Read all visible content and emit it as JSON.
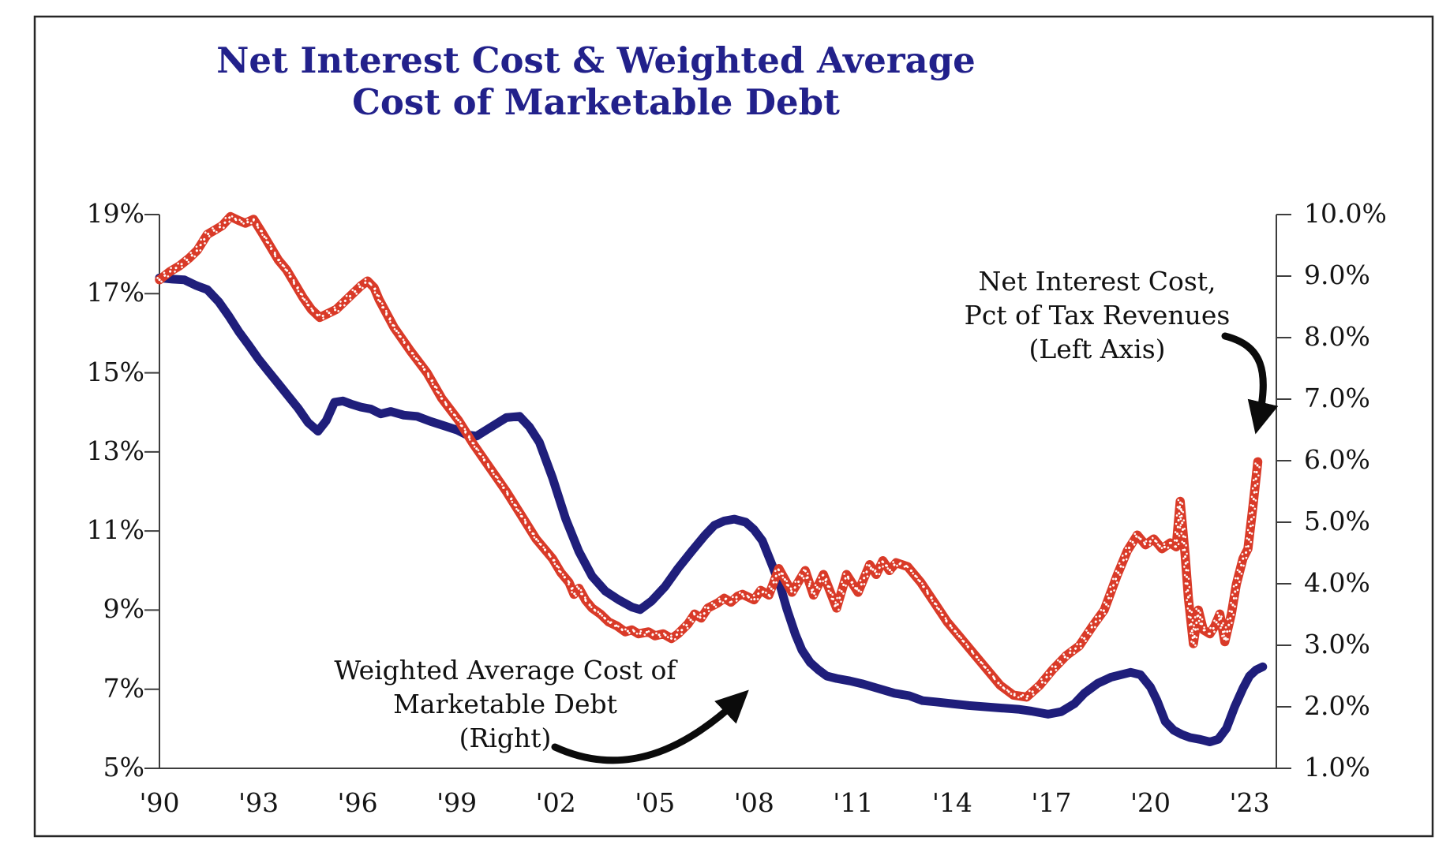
{
  "title": {
    "line1": "Net Interest Cost & Weighted Average",
    "line2": "Cost of Marketable Debt",
    "color": "#22218B"
  },
  "annotations": {
    "net_interest": {
      "line1": "Net Interest Cost,",
      "line2": "Pct of Tax Revenues",
      "line3": "(Left Axis)"
    },
    "weighted_avg": {
      "line1": "Weighted Average Cost of",
      "line2": "Marketable Debt",
      "line3": "(Right)"
    }
  },
  "colors": {
    "title_navy": "#22218B",
    "red_series": "#D93A28",
    "blue_series": "#1F1E7B",
    "axis": "#3d3d3d",
    "text": "#141414",
    "border": "#262626",
    "dot_texture": "#ffffff"
  },
  "chart_data": {
    "type": "line",
    "title": "Net Interest Cost & Weighted Average Cost of Marketable Debt",
    "grid": false,
    "legend_position": "annotated-arrows",
    "x_axis": {
      "tick_years": [
        1990,
        1993,
        1996,
        1999,
        2002,
        2005,
        2008,
        2011,
        2014,
        2017,
        2020,
        2023
      ],
      "tick_labels": [
        "'90",
        "'93",
        "'96",
        "'99",
        "'02",
        "'05",
        "'08",
        "'11",
        "'14",
        "'17",
        "'20",
        "'23"
      ],
      "range": [
        1990,
        2024.3
      ]
    },
    "left_axis": {
      "ticks": [
        19,
        17,
        15,
        13,
        11,
        9,
        7,
        5
      ],
      "tick_labels": [
        "19%",
        "17%",
        "15%",
        "13%",
        "11%",
        "9%",
        "7%",
        "5%"
      ],
      "range": [
        5,
        19
      ],
      "series": "Net Interest Cost, Pct of Tax Revenues"
    },
    "right_axis": {
      "ticks": [
        10,
        9,
        8,
        7,
        6,
        5,
        4,
        3,
        2,
        1
      ],
      "tick_labels": [
        "10.0%",
        "9.0%",
        "8.0%",
        "7.0%",
        "6.0%",
        "5.0%",
        "4.0%",
        "3.0%",
        "2.0%",
        "1.0%"
      ],
      "range": [
        1,
        10
      ],
      "series": "Weighted Average Cost of Marketable Debt"
    },
    "series": [
      {
        "name": "Weighted Average Cost of Marketable Debt",
        "axis": "right",
        "style": "solid",
        "color": "#1F1E7B",
        "points": [
          [
            1990.0,
            8.97
          ],
          [
            1990.4,
            8.95
          ],
          [
            1990.75,
            8.94
          ],
          [
            1991.1,
            8.85
          ],
          [
            1991.45,
            8.78
          ],
          [
            1991.8,
            8.58
          ],
          [
            1992.1,
            8.35
          ],
          [
            1992.4,
            8.1
          ],
          [
            1992.7,
            7.88
          ],
          [
            1993.0,
            7.65
          ],
          [
            1993.3,
            7.45
          ],
          [
            1993.6,
            7.25
          ],
          [
            1993.9,
            7.05
          ],
          [
            1994.2,
            6.85
          ],
          [
            1994.5,
            6.62
          ],
          [
            1994.8,
            6.48
          ],
          [
            1995.05,
            6.65
          ],
          [
            1995.3,
            6.95
          ],
          [
            1995.55,
            6.97
          ],
          [
            1995.8,
            6.92
          ],
          [
            1996.1,
            6.87
          ],
          [
            1996.4,
            6.84
          ],
          [
            1996.7,
            6.76
          ],
          [
            1997.0,
            6.8
          ],
          [
            1997.4,
            6.74
          ],
          [
            1997.8,
            6.72
          ],
          [
            1998.2,
            6.64
          ],
          [
            1998.6,
            6.57
          ],
          [
            1999.0,
            6.5
          ],
          [
            1999.3,
            6.42
          ],
          [
            1999.6,
            6.4
          ],
          [
            1999.9,
            6.5
          ],
          [
            2000.2,
            6.6
          ],
          [
            2000.5,
            6.7
          ],
          [
            2000.9,
            6.72
          ],
          [
            2001.2,
            6.55
          ],
          [
            2001.5,
            6.3
          ],
          [
            2001.9,
            5.72
          ],
          [
            2002.3,
            5.05
          ],
          [
            2002.7,
            4.52
          ],
          [
            2003.1,
            4.12
          ],
          [
            2003.5,
            3.88
          ],
          [
            2003.9,
            3.74
          ],
          [
            2004.3,
            3.62
          ],
          [
            2004.55,
            3.58
          ],
          [
            2004.9,
            3.72
          ],
          [
            2005.3,
            3.95
          ],
          [
            2005.7,
            4.25
          ],
          [
            2006.1,
            4.52
          ],
          [
            2006.5,
            4.78
          ],
          [
            2006.8,
            4.95
          ],
          [
            2007.1,
            5.02
          ],
          [
            2007.4,
            5.05
          ],
          [
            2007.75,
            5.0
          ],
          [
            2008.0,
            4.88
          ],
          [
            2008.25,
            4.7
          ],
          [
            2008.55,
            4.3
          ],
          [
            2008.8,
            3.95
          ],
          [
            2009.0,
            3.58
          ],
          [
            2009.25,
            3.18
          ],
          [
            2009.45,
            2.92
          ],
          [
            2009.7,
            2.72
          ],
          [
            2009.95,
            2.6
          ],
          [
            2010.2,
            2.5
          ],
          [
            2010.5,
            2.46
          ],
          [
            2010.9,
            2.42
          ],
          [
            2011.3,
            2.37
          ],
          [
            2011.75,
            2.3
          ],
          [
            2012.25,
            2.22
          ],
          [
            2012.7,
            2.18
          ],
          [
            2013.1,
            2.1
          ],
          [
            2013.5,
            2.08
          ],
          [
            2014.0,
            2.05
          ],
          [
            2014.5,
            2.02
          ],
          [
            2015.0,
            2.0
          ],
          [
            2015.5,
            1.98
          ],
          [
            2016.0,
            1.96
          ],
          [
            2016.4,
            1.93
          ],
          [
            2016.9,
            1.88
          ],
          [
            2017.3,
            1.92
          ],
          [
            2017.7,
            2.05
          ],
          [
            2018.0,
            2.22
          ],
          [
            2018.4,
            2.38
          ],
          [
            2018.8,
            2.48
          ],
          [
            2019.1,
            2.52
          ],
          [
            2019.4,
            2.56
          ],
          [
            2019.7,
            2.52
          ],
          [
            2020.0,
            2.32
          ],
          [
            2020.2,
            2.1
          ],
          [
            2020.45,
            1.76
          ],
          [
            2020.7,
            1.62
          ],
          [
            2020.95,
            1.55
          ],
          [
            2021.2,
            1.5
          ],
          [
            2021.5,
            1.47
          ],
          [
            2021.8,
            1.43
          ],
          [
            2022.05,
            1.47
          ],
          [
            2022.3,
            1.65
          ],
          [
            2022.55,
            2.0
          ],
          [
            2022.8,
            2.3
          ],
          [
            2023.0,
            2.5
          ],
          [
            2023.2,
            2.6
          ],
          [
            2023.4,
            2.65
          ]
        ]
      },
      {
        "name": "Net Interest Cost, Pct of Tax Revenues",
        "axis": "left",
        "style": "dotted-ribbon",
        "color": "#D93A28",
        "points": [
          [
            1990.0,
            17.35
          ],
          [
            1990.3,
            17.55
          ],
          [
            1990.6,
            17.7
          ],
          [
            1990.9,
            17.9
          ],
          [
            1991.15,
            18.1
          ],
          [
            1991.45,
            18.5
          ],
          [
            1991.7,
            18.62
          ],
          [
            1991.9,
            18.72
          ],
          [
            1992.15,
            18.95
          ],
          [
            1992.4,
            18.85
          ],
          [
            1992.6,
            18.78
          ],
          [
            1992.85,
            18.88
          ],
          [
            1993.1,
            18.55
          ],
          [
            1993.35,
            18.2
          ],
          [
            1993.6,
            17.85
          ],
          [
            1993.85,
            17.6
          ],
          [
            1994.1,
            17.25
          ],
          [
            1994.35,
            16.9
          ],
          [
            1994.6,
            16.6
          ],
          [
            1994.85,
            16.4
          ],
          [
            1995.1,
            16.5
          ],
          [
            1995.35,
            16.6
          ],
          [
            1995.6,
            16.8
          ],
          [
            1995.85,
            17.0
          ],
          [
            1996.1,
            17.2
          ],
          [
            1996.3,
            17.32
          ],
          [
            1996.5,
            17.15
          ],
          [
            1996.65,
            16.85
          ],
          [
            1997.1,
            16.15
          ],
          [
            1997.6,
            15.55
          ],
          [
            1998.1,
            15.0
          ],
          [
            1998.55,
            14.35
          ],
          [
            1999.05,
            13.8
          ],
          [
            1999.5,
            13.2
          ],
          [
            2000.0,
            12.6
          ],
          [
            2000.5,
            12.0
          ],
          [
            2000.95,
            11.4
          ],
          [
            2001.4,
            10.8
          ],
          [
            2001.9,
            10.3
          ],
          [
            2002.15,
            9.95
          ],
          [
            2002.4,
            9.7
          ],
          [
            2002.55,
            9.4
          ],
          [
            2002.7,
            9.55
          ],
          [
            2002.9,
            9.25
          ],
          [
            2003.1,
            9.05
          ],
          [
            2003.35,
            8.9
          ],
          [
            2003.6,
            8.7
          ],
          [
            2003.85,
            8.6
          ],
          [
            2004.1,
            8.45
          ],
          [
            2004.3,
            8.5
          ],
          [
            2004.5,
            8.4
          ],
          [
            2004.8,
            8.45
          ],
          [
            2005.0,
            8.35
          ],
          [
            2005.25,
            8.4
          ],
          [
            2005.5,
            8.28
          ],
          [
            2005.7,
            8.4
          ],
          [
            2006.0,
            8.65
          ],
          [
            2006.2,
            8.9
          ],
          [
            2006.4,
            8.8
          ],
          [
            2006.6,
            9.05
          ],
          [
            2006.9,
            9.18
          ],
          [
            2007.1,
            9.3
          ],
          [
            2007.3,
            9.2
          ],
          [
            2007.5,
            9.35
          ],
          [
            2007.65,
            9.4
          ],
          [
            2008.0,
            9.26
          ],
          [
            2008.2,
            9.5
          ],
          [
            2008.45,
            9.38
          ],
          [
            2008.75,
            10.05
          ],
          [
            2009.15,
            9.45
          ],
          [
            2009.55,
            10.0
          ],
          [
            2009.8,
            9.38
          ],
          [
            2010.1,
            9.9
          ],
          [
            2010.5,
            9.05
          ],
          [
            2010.8,
            9.9
          ],
          [
            2011.15,
            9.45
          ],
          [
            2011.5,
            10.15
          ],
          [
            2011.7,
            9.9
          ],
          [
            2011.9,
            10.25
          ],
          [
            2012.1,
            10.0
          ],
          [
            2012.3,
            10.2
          ],
          [
            2012.65,
            10.1
          ],
          [
            2013.05,
            9.7
          ],
          [
            2013.45,
            9.2
          ],
          [
            2013.85,
            8.7
          ],
          [
            2014.25,
            8.3
          ],
          [
            2014.65,
            7.9
          ],
          [
            2015.05,
            7.5
          ],
          [
            2015.45,
            7.1
          ],
          [
            2015.85,
            6.85
          ],
          [
            2016.25,
            6.8
          ],
          [
            2016.65,
            7.1
          ],
          [
            2017.05,
            7.5
          ],
          [
            2017.45,
            7.85
          ],
          [
            2017.85,
            8.1
          ],
          [
            2018.25,
            8.6
          ],
          [
            2018.6,
            9.0
          ],
          [
            2019.0,
            9.9
          ],
          [
            2019.3,
            10.5
          ],
          [
            2019.6,
            10.9
          ],
          [
            2019.85,
            10.65
          ],
          [
            2020.1,
            10.8
          ],
          [
            2020.35,
            10.55
          ],
          [
            2020.6,
            10.7
          ],
          [
            2020.78,
            10.6
          ],
          [
            2020.9,
            11.75
          ],
          [
            2021.05,
            10.4
          ],
          [
            2021.15,
            9.3
          ],
          [
            2021.3,
            8.15
          ],
          [
            2021.45,
            9.0
          ],
          [
            2021.6,
            8.5
          ],
          [
            2021.8,
            8.4
          ],
          [
            2021.95,
            8.6
          ],
          [
            2022.1,
            8.9
          ],
          [
            2022.25,
            8.2
          ],
          [
            2022.45,
            8.9
          ],
          [
            2022.6,
            9.65
          ],
          [
            2022.8,
            10.3
          ],
          [
            2022.95,
            10.55
          ],
          [
            2023.1,
            11.6
          ],
          [
            2023.25,
            12.75
          ]
        ]
      }
    ]
  }
}
